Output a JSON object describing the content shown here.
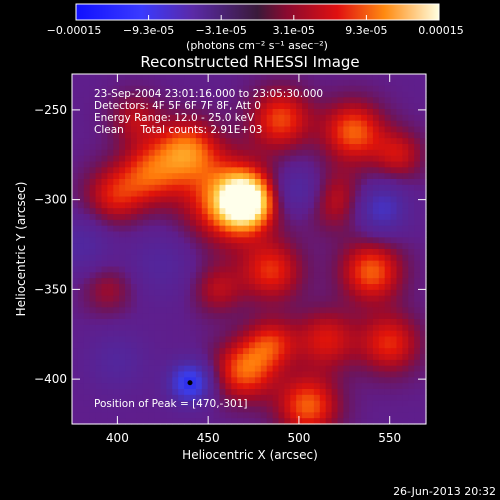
{
  "chart_data": {
    "type": "heatmap",
    "title": "Reconstructed RHESSI Image",
    "xlabel": "Heliocentric X (arcsec)",
    "ylabel": "Heliocentric Y (arcsec)",
    "xlim": [
      375,
      570
    ],
    "ylim": [
      -425,
      -230
    ],
    "x_ticks": [
      400,
      450,
      500,
      550
    ],
    "y_ticks": [
      -250,
      -300,
      -350,
      -400
    ],
    "colorbar": {
      "ticks": [
        "-0.00015",
        "-9.3e-05",
        "-3.1e-05",
        "3.1e-05",
        "9.3e-05",
        "0.00015"
      ],
      "unit_label": "(photons cm⁻² s⁻¹ asec⁻²)",
      "range": [
        -0.00015,
        0.00015
      ]
    },
    "annotations": {
      "time": "23-Sep-2004 23:01:16.000 to 23:05:30.000",
      "detectors": "Detectors: 4F 5F 6F 7F 8F, Att 0",
      "energy": "Energy Range: 12.0 - 25.0 keV",
      "clean": "Clean     Total counts: 2.91E+03",
      "peak": "Position of Peak = [470,-301]"
    },
    "peak": {
      "x": 470,
      "y": -301
    },
    "sources": [
      {
        "x": 470,
        "y": -301,
        "amp": 1.0,
        "s": 10
      },
      {
        "x": 460,
        "y": -300,
        "amp": 0.55,
        "s": 18
      },
      {
        "x": 438,
        "y": -272,
        "amp": 0.55,
        "s": 12
      },
      {
        "x": 418,
        "y": -285,
        "amp": 0.45,
        "s": 12
      },
      {
        "x": 398,
        "y": -298,
        "amp": 0.4,
        "s": 12
      },
      {
        "x": 490,
        "y": -255,
        "amp": 0.5,
        "s": 12
      },
      {
        "x": 530,
        "y": -262,
        "amp": 0.55,
        "s": 12
      },
      {
        "x": 555,
        "y": -275,
        "amp": 0.35,
        "s": 10
      },
      {
        "x": 520,
        "y": -300,
        "amp": 0.35,
        "s": 12
      },
      {
        "x": 485,
        "y": -340,
        "amp": 0.45,
        "s": 12
      },
      {
        "x": 455,
        "y": -350,
        "amp": 0.3,
        "s": 10
      },
      {
        "x": 540,
        "y": -340,
        "amp": 0.55,
        "s": 12
      },
      {
        "x": 550,
        "y": -380,
        "amp": 0.45,
        "s": 12
      },
      {
        "x": 515,
        "y": -378,
        "amp": 0.4,
        "s": 12
      },
      {
        "x": 470,
        "y": -395,
        "amp": 0.55,
        "s": 12
      },
      {
        "x": 485,
        "y": -380,
        "amp": 0.4,
        "s": 10
      },
      {
        "x": 505,
        "y": -415,
        "amp": 0.55,
        "s": 12
      },
      {
        "x": 410,
        "y": -255,
        "amp": 0.3,
        "s": 10
      },
      {
        "x": 395,
        "y": -350,
        "amp": 0.25,
        "s": 10
      },
      {
        "x": 440,
        "y": -402,
        "amp": -0.75,
        "s": 8
      },
      {
        "x": 500,
        "y": -295,
        "amp": -0.35,
        "s": 10
      },
      {
        "x": 545,
        "y": -305,
        "amp": -0.45,
        "s": 10
      },
      {
        "x": 380,
        "y": -325,
        "amp": -0.25,
        "s": 12
      },
      {
        "x": 425,
        "y": -335,
        "amp": -0.2,
        "s": 14
      },
      {
        "x": 400,
        "y": -390,
        "amp": -0.2,
        "s": 12
      }
    ]
  },
  "footer": {
    "timestamp": "26-Jun-2013 20:32"
  }
}
